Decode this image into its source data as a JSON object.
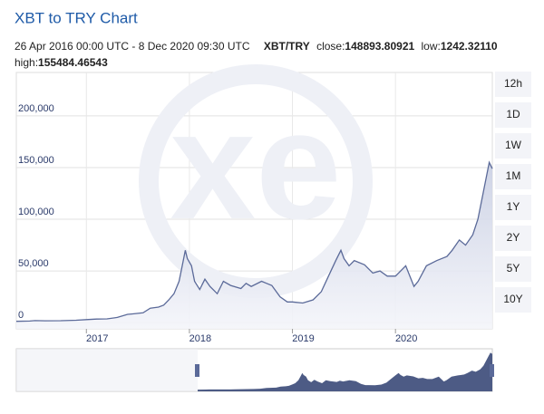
{
  "header": {
    "date_range": "26 Apr 2016 00:00 UTC - 8 Dec 2020 09:30 UTC",
    "pair": "XBT/TRY",
    "close_label": "close:",
    "close": "148893.80921",
    "low_label": "low:",
    "low": "1242.32110",
    "high_label": "high:",
    "high": "155484.46543"
  },
  "range_buttons": [
    "12h",
    "1D",
    "1W",
    "1M",
    "1Y",
    "2Y",
    "5Y",
    "10Y"
  ],
  "watermark": "xe",
  "chart_data": {
    "type": "line",
    "title": "XBT to TRY Chart",
    "x": [
      2016.32,
      2016.45,
      2016.5,
      2016.6,
      2016.75,
      2016.9,
      2017.0,
      2017.1,
      2017.2,
      2017.3,
      2017.4,
      2017.45,
      2017.55,
      2017.62,
      2017.7,
      2017.75,
      2017.8,
      2017.85,
      2017.9,
      2017.93,
      2017.96,
      2017.98,
      2018.02,
      2018.05,
      2018.1,
      2018.15,
      2018.2,
      2018.27,
      2018.33,
      2018.4,
      2018.5,
      2018.55,
      2018.6,
      2018.7,
      2018.75,
      2018.8,
      2018.88,
      2018.95,
      2019.0,
      2019.1,
      2019.2,
      2019.28,
      2019.35,
      2019.42,
      2019.47,
      2019.5,
      2019.55,
      2019.6,
      2019.7,
      2019.78,
      2019.85,
      2019.92,
      2020.0,
      2020.1,
      2020.18,
      2020.22,
      2020.3,
      2020.4,
      2020.5,
      2020.55,
      2020.62,
      2020.68,
      2020.75,
      2020.8,
      2020.85,
      2020.88,
      2020.91,
      2020.94
    ],
    "series": [
      {
        "name": "XBT/TRY",
        "color": "#5b6a99",
        "values": [
          1300,
          1500,
          2000,
          1800,
          1900,
          2300,
          2900,
          3500,
          3600,
          5000,
          8000,
          8500,
          9500,
          14000,
          15000,
          17000,
          22000,
          28000,
          40000,
          55000,
          70000,
          62000,
          55000,
          40000,
          32000,
          42000,
          35000,
          28000,
          40000,
          36000,
          33000,
          38000,
          35000,
          40000,
          38000,
          36000,
          25000,
          20000,
          20000,
          19000,
          22000,
          30000,
          45000,
          60000,
          70000,
          62000,
          55000,
          60000,
          56000,
          48000,
          50000,
          45000,
          45000,
          55000,
          35000,
          40000,
          55000,
          60000,
          64000,
          70000,
          80000,
          75000,
          85000,
          100000,
          125000,
          140000,
          155000,
          148894
        ]
      }
    ],
    "xlim": [
      2016.32,
      2020.94
    ],
    "xticks": [
      2017,
      2018,
      2019,
      2020
    ],
    "ylim": [
      -6000,
      242000
    ],
    "yticks": [
      0,
      {
        "value": 50000,
        "label": "50,000"
      },
      {
        "value": 100000,
        "label": "100,000"
      },
      {
        "value": 150000,
        "label": "150,000"
      },
      {
        "value": 200000,
        "label": "200,000"
      }
    ],
    "grid": true
  }
}
